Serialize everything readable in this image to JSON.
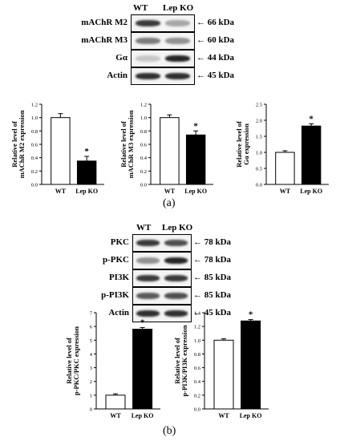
{
  "panel_a": {
    "label": "(a)",
    "lanes": [
      "WT",
      "Lep KO"
    ],
    "blots": [
      {
        "protein": "mAChR M2",
        "kda": "66 kDa",
        "wt": 0.85,
        "ko": 0.35
      },
      {
        "protein": "mAChR M3",
        "kda": "60 kDa",
        "wt": 0.55,
        "ko": 0.45
      },
      {
        "protein": "Gα",
        "kda": "44 kDa",
        "wt": 0.2,
        "ko": 0.95
      },
      {
        "protein": "Actin",
        "kda": "45 kDa",
        "wt": 0.9,
        "ko": 0.9
      }
    ]
  },
  "panel_b": {
    "label": "(b)",
    "lanes": [
      "WT",
      "Lep KO"
    ],
    "blots": [
      {
        "protein": "PKC",
        "kda": "78 kDa",
        "wt": 0.85,
        "ko": 0.75
      },
      {
        "protein": "p-PKC",
        "kda": "78 kDa",
        "wt": 0.45,
        "ko": 0.95
      },
      {
        "protein": "PI3K",
        "kda": "85 kDa",
        "wt": 0.85,
        "ko": 0.85
      },
      {
        "protein": "p-PI3K",
        "kda": "85 kDa",
        "wt": 0.7,
        "ko": 0.75
      },
      {
        "protein": "Actin",
        "kda": "45 kDa",
        "wt": 0.9,
        "ko": 0.9
      }
    ]
  },
  "colors": {
    "wt_fill": "#ffffff",
    "ko_fill": "#000000",
    "axis": "#000000",
    "band": "#1a1a1a"
  },
  "chart_data": [
    {
      "type": "bar",
      "panel": "a",
      "categories": [
        "WT",
        "Lep KO"
      ],
      "values": [
        1.0,
        0.35
      ],
      "errors": [
        0.06,
        0.07
      ],
      "ylabel": "Relative level of mAChR M2 expression",
      "ylim": [
        0,
        1.2
      ],
      "yticks": [
        "0.0",
        "0.2",
        "0.4",
        "0.6",
        "0.8",
        "1.0",
        "1.2"
      ],
      "annotation": "*",
      "annotated_index": 1
    },
    {
      "type": "bar",
      "panel": "a",
      "categories": [
        "WT",
        "Lep KO"
      ],
      "values": [
        1.0,
        0.74
      ],
      "errors": [
        0.04,
        0.06
      ],
      "ylabel": "Relative level of mAChR M3 expression",
      "ylim": [
        0,
        1.2
      ],
      "yticks": [
        "0.0",
        "0.2",
        "0.4",
        "0.6",
        "0.8",
        "1.0",
        "1.2"
      ],
      "annotation": "*",
      "annotated_index": 1
    },
    {
      "type": "bar",
      "panel": "a",
      "categories": [
        "WT",
        "Lep KO"
      ],
      "values": [
        1.0,
        1.82
      ],
      "errors": [
        0.05,
        0.07
      ],
      "ylabel": "Relative level of Gα expression",
      "ylim": [
        0,
        2.5
      ],
      "yticks": [
        "0.0",
        "0.5",
        "1.0",
        "1.5",
        "2.0",
        "2.5"
      ],
      "annotation": "*",
      "annotated_index": 1
    },
    {
      "type": "bar",
      "panel": "b",
      "categories": [
        "WT",
        "Lep KO"
      ],
      "values": [
        1.0,
        5.8
      ],
      "errors": [
        0.1,
        0.12
      ],
      "ylabel": "Relative level of p-PKC/PKC expression",
      "ylim": [
        0,
        7
      ],
      "yticks": [
        "0",
        "1",
        "2",
        "3",
        "4",
        "5",
        "6",
        "7"
      ],
      "annotation": "*",
      "annotated_index": 1
    },
    {
      "type": "bar",
      "panel": "b",
      "categories": [
        "WT",
        "Lep KO"
      ],
      "values": [
        1.0,
        1.28
      ],
      "errors": [
        0.02,
        0.02
      ],
      "ylabel": "Relative level of p-PI3K/PI3K expression",
      "ylim": [
        0,
        1.4
      ],
      "yticks": [
        "0.0",
        "0.2",
        "0.4",
        "0.6",
        "0.8",
        "1.0",
        "1.2",
        "1.4"
      ],
      "annotation": "*",
      "annotated_index": 1
    }
  ]
}
